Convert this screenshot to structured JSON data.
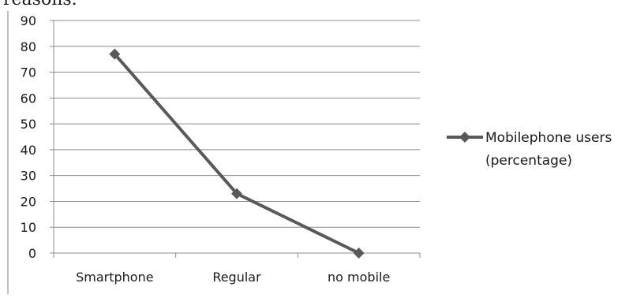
{
  "header_fragment": "reasons.",
  "chart_data": {
    "type": "line",
    "categories": [
      "Smartphone",
      "Regular",
      "no mobile"
    ],
    "series": [
      {
        "name": "Mobilephone users (percentage)",
        "values": [
          77,
          23,
          0
        ],
        "color": "#595959",
        "marker": "diamond"
      }
    ],
    "title": "",
    "xlabel": "",
    "ylabel": "",
    "ylim": [
      0,
      90
    ],
    "yticks": [
      0,
      10,
      20,
      30,
      40,
      50,
      60,
      70,
      80,
      90
    ],
    "grid": true,
    "legend": {
      "position": "right",
      "lines": [
        "Mobilephone users",
        "(percentage)"
      ]
    }
  }
}
